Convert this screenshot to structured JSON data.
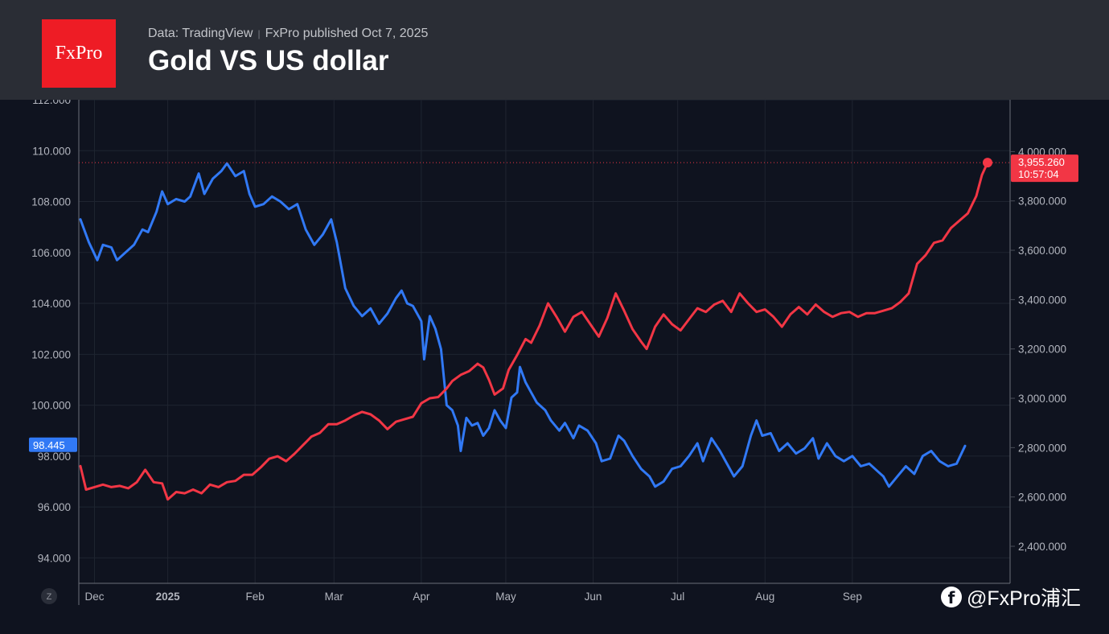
{
  "header": {
    "logo_text": "FxPro",
    "source_data": "Data: TradingView",
    "source_publisher": "FxPro published Oct 7,  2025",
    "title": "Gold VS US dollar"
  },
  "watermark": {
    "icon": "facebook-icon",
    "text": "@FxPro浦汇"
  },
  "zoom_button": {
    "label": "Z"
  },
  "colors": {
    "background": "#0f131f",
    "header": "#2a2d35",
    "dxy": "#3179f5",
    "gold": "#f23645",
    "grid": "#1f2430",
    "axis_text": "#b2b5be"
  },
  "chart_data": {
    "type": "line",
    "title": "Gold VS US dollar",
    "x_labels": [
      {
        "label": "Dec",
        "t": 5,
        "bold": false
      },
      {
        "label": "2025",
        "t": 31,
        "bold": true
      },
      {
        "label": "Feb",
        "t": 62,
        "bold": false
      },
      {
        "label": "Mar",
        "t": 90,
        "bold": false
      },
      {
        "label": "Apr",
        "t": 121,
        "bold": false
      },
      {
        "label": "May",
        "t": 151,
        "bold": false
      },
      {
        "label": "Jun",
        "t": 182,
        "bold": false
      },
      {
        "label": "Jul",
        "t": 212,
        "bold": false
      },
      {
        "label": "Aug",
        "t": 243,
        "bold": false
      },
      {
        "label": "Sep",
        "t": 274,
        "bold": false
      }
    ],
    "x_range_days": [
      0,
      322
    ],
    "left_axis": {
      "series": "US Dollar Index",
      "ylim": [
        93,
        112
      ],
      "ticks": [
        "112.000",
        "110.000",
        "108.000",
        "106.000",
        "104.000",
        "102.000",
        "100.000",
        "98.000",
        "96.000",
        "94.000"
      ]
    },
    "right_axis": {
      "series": "Gold",
      "ylim": [
        2250,
        4210
      ],
      "ticks": [
        "4,000.000",
        "3,800.000",
        "3,600.000",
        "3,400.000",
        "3,200.000",
        "3,000.000",
        "2,800.000",
        "2,600.000",
        "2,400.000"
      ]
    },
    "series": [
      {
        "name": "US Dollar Index",
        "axis": "left",
        "color": "#3179f5",
        "last_value_label": "98.445",
        "last_value": 98.445,
        "points": [
          [
            0,
            107.3
          ],
          [
            3,
            106.4
          ],
          [
            6,
            105.7
          ],
          [
            8,
            106.3
          ],
          [
            11,
            106.2
          ],
          [
            13,
            105.7
          ],
          [
            16,
            106.0
          ],
          [
            19,
            106.3
          ],
          [
            22,
            106.9
          ],
          [
            24,
            106.8
          ],
          [
            27,
            107.6
          ],
          [
            29,
            108.4
          ],
          [
            31,
            107.9
          ],
          [
            34,
            108.1
          ],
          [
            37,
            108.0
          ],
          [
            39,
            108.2
          ],
          [
            42,
            109.1
          ],
          [
            44,
            108.3
          ],
          [
            47,
            108.9
          ],
          [
            50,
            109.2
          ],
          [
            52,
            109.5
          ],
          [
            55,
            109.0
          ],
          [
            58,
            109.2
          ],
          [
            60,
            108.3
          ],
          [
            62,
            107.8
          ],
          [
            65,
            107.9
          ],
          [
            68,
            108.2
          ],
          [
            71,
            108.0
          ],
          [
            74,
            107.7
          ],
          [
            77,
            107.9
          ],
          [
            80,
            106.9
          ],
          [
            83,
            106.3
          ],
          [
            86,
            106.7
          ],
          [
            89,
            107.3
          ],
          [
            91,
            106.4
          ],
          [
            94,
            104.6
          ],
          [
            97,
            103.9
          ],
          [
            100,
            103.5
          ],
          [
            103,
            103.8
          ],
          [
            106,
            103.2
          ],
          [
            109,
            103.6
          ],
          [
            112,
            104.2
          ],
          [
            114,
            104.5
          ],
          [
            116,
            104.0
          ],
          [
            118,
            103.9
          ],
          [
            121,
            103.3
          ],
          [
            122,
            101.8
          ],
          [
            124,
            103.5
          ],
          [
            126,
            103.0
          ],
          [
            128,
            102.2
          ],
          [
            130,
            100.0
          ],
          [
            132,
            99.8
          ],
          [
            134,
            99.2
          ],
          [
            135,
            98.2
          ],
          [
            137,
            99.5
          ],
          [
            139,
            99.2
          ],
          [
            141,
            99.3
          ],
          [
            143,
            98.8
          ],
          [
            145,
            99.1
          ],
          [
            147,
            99.8
          ],
          [
            149,
            99.4
          ],
          [
            151,
            99.1
          ],
          [
            153,
            100.3
          ],
          [
            155,
            100.5
          ],
          [
            156,
            101.5
          ],
          [
            158,
            100.9
          ],
          [
            160,
            100.5
          ],
          [
            162,
            100.1
          ],
          [
            165,
            99.8
          ],
          [
            167,
            99.4
          ],
          [
            170,
            99.0
          ],
          [
            172,
            99.3
          ],
          [
            175,
            98.7
          ],
          [
            177,
            99.2
          ],
          [
            180,
            99.0
          ],
          [
            183,
            98.5
          ],
          [
            185,
            97.8
          ],
          [
            188,
            97.9
          ],
          [
            191,
            98.8
          ],
          [
            193,
            98.6
          ],
          [
            196,
            98.0
          ],
          [
            199,
            97.5
          ],
          [
            202,
            97.2
          ],
          [
            204,
            96.8
          ],
          [
            207,
            97.0
          ],
          [
            210,
            97.5
          ],
          [
            213,
            97.6
          ],
          [
            216,
            98.0
          ],
          [
            219,
            98.5
          ],
          [
            221,
            97.8
          ],
          [
            224,
            98.7
          ],
          [
            227,
            98.2
          ],
          [
            230,
            97.6
          ],
          [
            232,
            97.2
          ],
          [
            235,
            97.6
          ],
          [
            238,
            98.8
          ],
          [
            240,
            99.4
          ],
          [
            242,
            98.8
          ],
          [
            245,
            98.9
          ],
          [
            248,
            98.2
          ],
          [
            251,
            98.5
          ],
          [
            254,
            98.1
          ],
          [
            257,
            98.3
          ],
          [
            260,
            98.7
          ],
          [
            262,
            97.9
          ],
          [
            265,
            98.5
          ],
          [
            268,
            98.0
          ],
          [
            271,
            97.8
          ],
          [
            274,
            98.0
          ],
          [
            277,
            97.6
          ],
          [
            280,
            97.7
          ],
          [
            283,
            97.4
          ],
          [
            285,
            97.2
          ],
          [
            287,
            96.8
          ],
          [
            290,
            97.2
          ],
          [
            293,
            97.6
          ],
          [
            296,
            97.3
          ],
          [
            299,
            98.0
          ],
          [
            302,
            98.2
          ],
          [
            305,
            97.8
          ],
          [
            308,
            97.6
          ],
          [
            311,
            97.7
          ],
          [
            314,
            98.4
          ]
        ]
      },
      {
        "name": "Gold",
        "axis": "right",
        "color": "#f23645",
        "last_value_label": "3,955.260",
        "last_value": 3955.26,
        "countdown": "10:57:04",
        "points": [
          [
            0,
            2725
          ],
          [
            2,
            2630
          ],
          [
            5,
            2640
          ],
          [
            8,
            2650
          ],
          [
            11,
            2640
          ],
          [
            14,
            2645
          ],
          [
            17,
            2635
          ],
          [
            20,
            2660
          ],
          [
            23,
            2710
          ],
          [
            26,
            2660
          ],
          [
            29,
            2655
          ],
          [
            31,
            2590
          ],
          [
            34,
            2620
          ],
          [
            37,
            2615
          ],
          [
            40,
            2630
          ],
          [
            43,
            2615
          ],
          [
            46,
            2650
          ],
          [
            49,
            2640
          ],
          [
            52,
            2660
          ],
          [
            55,
            2665
          ],
          [
            58,
            2690
          ],
          [
            61,
            2690
          ],
          [
            64,
            2720
          ],
          [
            67,
            2755
          ],
          [
            70,
            2765
          ],
          [
            73,
            2745
          ],
          [
            76,
            2775
          ],
          [
            79,
            2810
          ],
          [
            82,
            2845
          ],
          [
            85,
            2860
          ],
          [
            88,
            2895
          ],
          [
            91,
            2895
          ],
          [
            94,
            2910
          ],
          [
            97,
            2930
          ],
          [
            100,
            2945
          ],
          [
            103,
            2935
          ],
          [
            106,
            2910
          ],
          [
            109,
            2875
          ],
          [
            112,
            2905
          ],
          [
            115,
            2915
          ],
          [
            118,
            2925
          ],
          [
            121,
            2980
          ],
          [
            124,
            3000
          ],
          [
            127,
            3005
          ],
          [
            130,
            3040
          ],
          [
            132,
            3070
          ],
          [
            135,
            3095
          ],
          [
            138,
            3110
          ],
          [
            141,
            3140
          ],
          [
            143,
            3125
          ],
          [
            145,
            3075
          ],
          [
            147,
            3015
          ],
          [
            150,
            3040
          ],
          [
            152,
            3115
          ],
          [
            155,
            3175
          ],
          [
            158,
            3240
          ],
          [
            160,
            3225
          ],
          [
            163,
            3295
          ],
          [
            166,
            3385
          ],
          [
            169,
            3330
          ],
          [
            172,
            3270
          ],
          [
            175,
            3330
          ],
          [
            178,
            3350
          ],
          [
            181,
            3300
          ],
          [
            184,
            3250
          ],
          [
            187,
            3325
          ],
          [
            190,
            3425
          ],
          [
            193,
            3355
          ],
          [
            196,
            3280
          ],
          [
            199,
            3230
          ],
          [
            201,
            3200
          ],
          [
            204,
            3290
          ],
          [
            207,
            3340
          ],
          [
            210,
            3300
          ],
          [
            213,
            3275
          ],
          [
            216,
            3320
          ],
          [
            219,
            3365
          ],
          [
            222,
            3350
          ],
          [
            225,
            3380
          ],
          [
            228,
            3395
          ],
          [
            231,
            3350
          ],
          [
            234,
            3425
          ],
          [
            237,
            3385
          ],
          [
            240,
            3350
          ],
          [
            243,
            3360
          ],
          [
            246,
            3330
          ],
          [
            249,
            3290
          ],
          [
            252,
            3340
          ],
          [
            255,
            3370
          ],
          [
            258,
            3340
          ],
          [
            261,
            3380
          ],
          [
            264,
            3350
          ],
          [
            267,
            3330
          ],
          [
            270,
            3345
          ],
          [
            273,
            3350
          ],
          [
            276,
            3330
          ],
          [
            279,
            3345
          ],
          [
            282,
            3345
          ],
          [
            285,
            3355
          ],
          [
            288,
            3365
          ],
          [
            291,
            3390
          ],
          [
            294,
            3425
          ],
          [
            297,
            3545
          ],
          [
            300,
            3580
          ],
          [
            303,
            3630
          ],
          [
            306,
            3640
          ],
          [
            309,
            3690
          ],
          [
            312,
            3720
          ],
          [
            315,
            3750
          ],
          [
            318,
            3820
          ],
          [
            320,
            3905
          ],
          [
            322,
            3955.26
          ]
        ]
      }
    ]
  }
}
